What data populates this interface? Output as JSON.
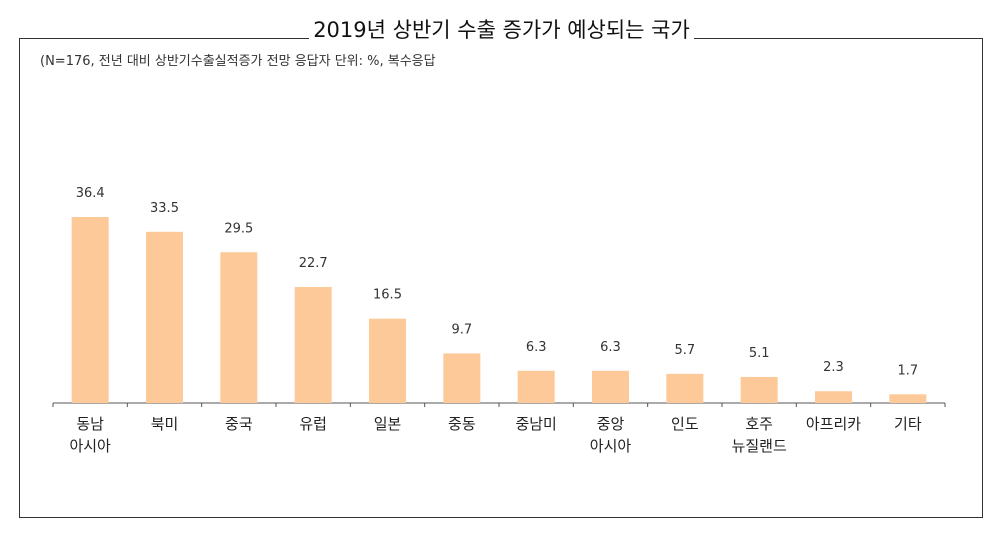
{
  "title": "2019년 상반기 수출 증가가 예상되는 국가",
  "subtitle": "(N=176,  전년 대비 상반기수출실적증가 전망 응답자 단위: %,  복수응답",
  "colors": {
    "bar": "#FDC998",
    "axis": "#555555"
  },
  "chart_data": {
    "type": "bar",
    "title": "2019년 상반기 수출 증가가 예상되는 국가",
    "categories": [
      [
        "동남",
        "아시아"
      ],
      [
        "북미"
      ],
      [
        "중국"
      ],
      [
        "유럽"
      ],
      [
        "일본"
      ],
      [
        "중동"
      ],
      [
        "중남미"
      ],
      [
        "중앙",
        "아시아"
      ],
      [
        "인도"
      ],
      [
        "호주",
        "뉴질랜드"
      ],
      [
        "아프리카"
      ],
      [
        "기타"
      ]
    ],
    "values": [
      36.4,
      33.5,
      29.5,
      22.7,
      16.5,
      9.7,
      6.3,
      6.3,
      5.7,
      5.1,
      2.3,
      1.7
    ],
    "value_labels": [
      "36.4",
      "33.5",
      "29.5",
      "22.7",
      "16.5",
      "9.7",
      "6.3",
      "6.3",
      "5.7",
      "5.1",
      "2.3",
      "1.7"
    ],
    "ylim": [
      0,
      36.4
    ],
    "grid": false,
    "legend": "none"
  }
}
